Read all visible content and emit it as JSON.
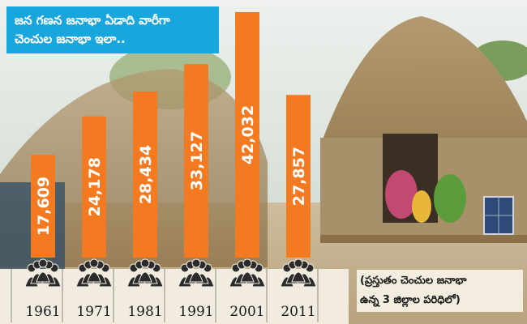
{
  "title_lines": [
    "జన గణన జనాభా ఏడాది వారీగా",
    "చెంచుల జనాభా ఇలా.."
  ],
  "footnote_lines": [
    "(ప్రస్తుతం చెంచుల జనాభా",
    "ఉన్న 3 జిల్లాల పరిధిలో)"
  ],
  "colors": {
    "bar": "#f37a21",
    "title_bg": "#18a6dc",
    "people_icon": "#2b2b2b"
  },
  "icon": "people-group-icon",
  "chart_data": {
    "type": "bar",
    "categories": [
      "1961",
      "1971",
      "1981",
      "1991",
      "2001",
      "2011"
    ],
    "values": [
      17609,
      24178,
      28434,
      33127,
      42032,
      27857
    ],
    "value_labels": [
      "17,609",
      "24,178",
      "28,434",
      "33,127",
      "42,032",
      "27,857"
    ],
    "ylim": [
      0,
      43000
    ],
    "grid": false
  }
}
